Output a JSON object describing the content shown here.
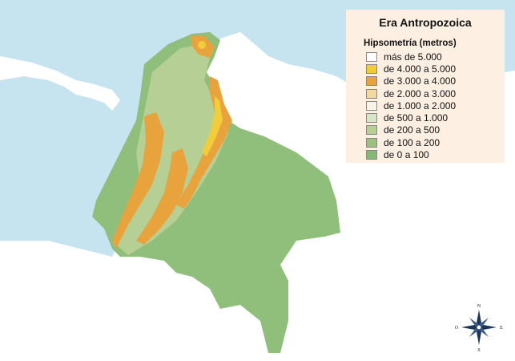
{
  "legend": {
    "title": "Era Antropozoica",
    "subtitle": "Hipsometría (metros)",
    "items": [
      {
        "label": "más de 5.000",
        "color": "#ffffff"
      },
      {
        "label": "de 4.000 a 5.000",
        "color": "#f2cc3a"
      },
      {
        "label": "de 3.000 a 4.000",
        "color": "#e8a33d"
      },
      {
        "label": "de 2.000 a 3.000",
        "color": "#f2d8a2"
      },
      {
        "label": "de 1.000 a 2.000",
        "color": "#fbf4e6"
      },
      {
        "label": "de 500 a 1.000",
        "color": "#d9e6c6"
      },
      {
        "label": "de 200 a 500",
        "color": "#b5cf95"
      },
      {
        "label": "de 100 a 200",
        "color": "#9cc17f"
      },
      {
        "label": "de 0 a 100",
        "color": "#86b774"
      }
    ]
  },
  "compass": {
    "n": "N",
    "s": "S",
    "e": "E",
    "o": "O"
  },
  "colors": {
    "sea": "#c5e4f0",
    "land_neighbors": "#ffffff",
    "lowland": "#8fbf7a",
    "mountain_orange": "#e8a33d",
    "mountain_yellow": "#f2cc3a"
  }
}
